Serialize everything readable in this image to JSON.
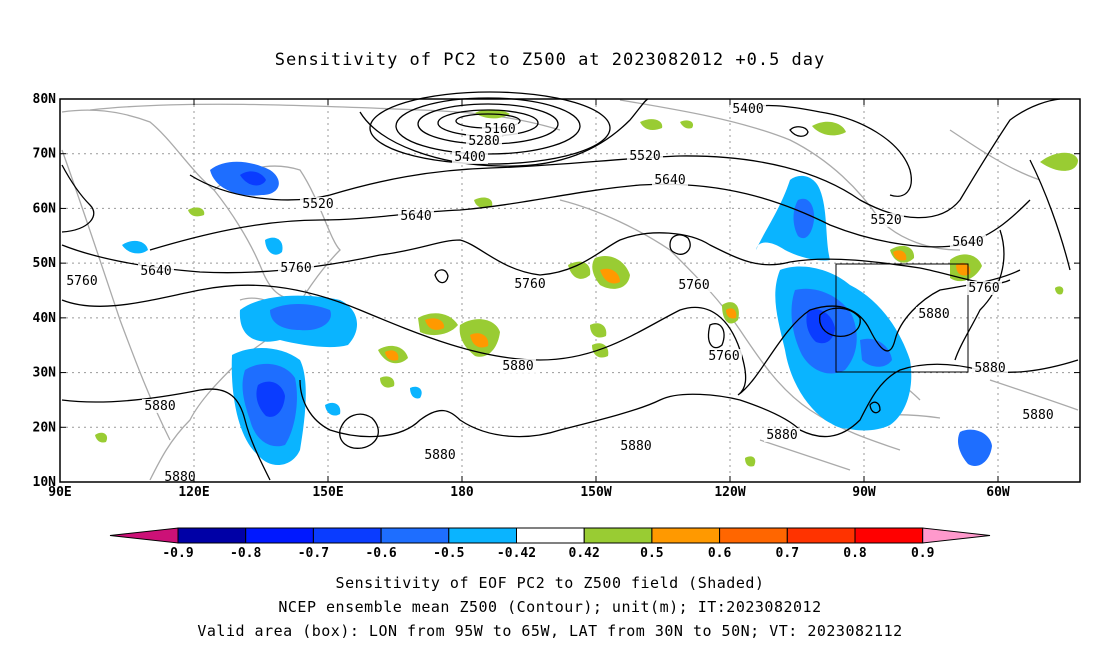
{
  "title": "Sensitivity of PC2 to Z500 at 2023082012 +0.5 day",
  "axes": {
    "lon_ticks": [
      "90E",
      "120E",
      "150E",
      "180",
      "150W",
      "120W",
      "90W",
      "60W"
    ],
    "lat_ticks": [
      "80N",
      "70N",
      "60N",
      "50N",
      "40N",
      "30N",
      "20N",
      "10N"
    ]
  },
  "contour_labels": [
    "5160",
    "5280",
    "5400",
    "5400",
    "5520",
    "5520",
    "5520",
    "5640",
    "5640",
    "5640",
    "5640",
    "5760",
    "5760",
    "5760",
    "5760",
    "5760",
    "5760",
    "5880",
    "5880",
    "5880",
    "5880",
    "5880",
    "5880",
    "5880",
    "5880"
  ],
  "colorbar": {
    "labels": [
      "-0.9",
      "-0.8",
      "-0.7",
      "-0.6",
      "-0.5",
      "-0.42",
      "0.42",
      "0.5",
      "0.6",
      "0.7",
      "0.8",
      "0.9"
    ],
    "colors": [
      "#0000a6",
      "#0018ff",
      "#0a3cff",
      "#1e6eff",
      "#0ab4ff",
      "#ffffff",
      "#99cc33",
      "#ff9900",
      "#ff6600",
      "#ff3300",
      "#ff0000"
    ],
    "low_color": "#cc1177",
    "high_color": "#ff99cc"
  },
  "footer": {
    "line1": "Sensitivity of EOF PC2 to Z500 field (Shaded)",
    "line2": "NCEP ensemble mean Z500 (Contour); unit(m); IT:2023082012",
    "line3": "Valid area (box): LON from 95W to 65W, LAT from 30N to 50N; VT: 2023082112"
  }
}
